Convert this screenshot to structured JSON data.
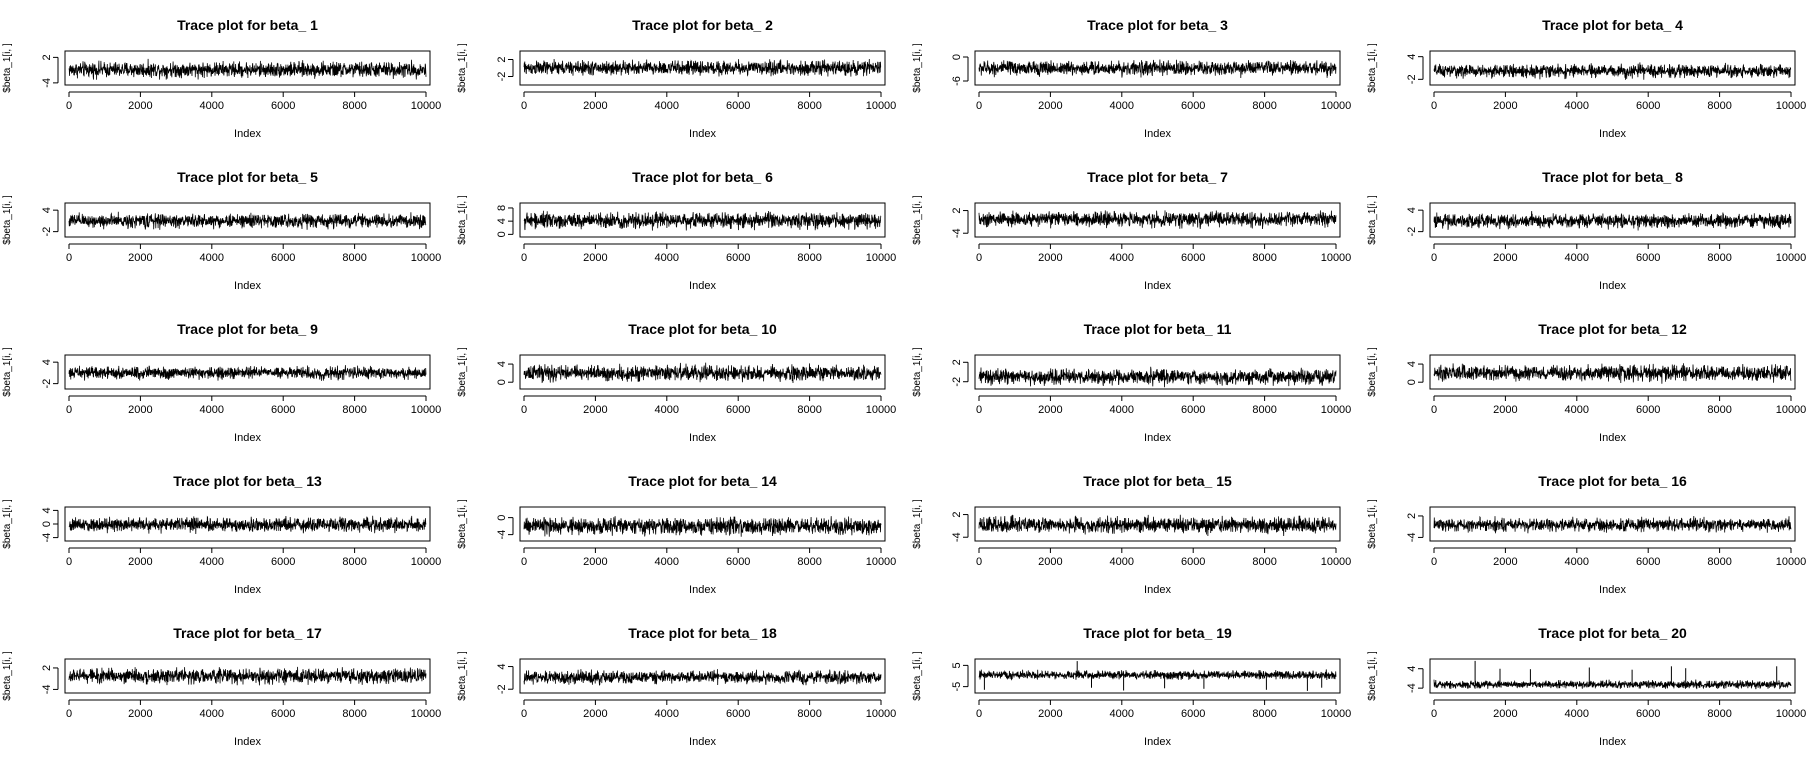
{
  "chart_data": [
    {
      "type": "line",
      "title": "Trace plot for beta_ 1",
      "xlabel": "Index",
      "ylabel": "$beta_1[i, ]",
      "x_ticks": [
        "0",
        "2000",
        "4000",
        "6000",
        "8000",
        "10000"
      ],
      "y_ticks": [
        "-4",
        "2"
      ],
      "xlim": [
        0,
        10000
      ],
      "ylim": [
        -4.5,
        3.5
      ],
      "series": {
        "center": -0.9,
        "spread": 1.4,
        "outliers": []
      }
    },
    {
      "type": "line",
      "title": "Trace plot for beta_ 2",
      "xlabel": "Index",
      "ylabel": "$beta_1[i, ]",
      "x_ticks": [
        "0",
        "2000",
        "4000",
        "6000",
        "8000",
        "10000"
      ],
      "y_ticks": [
        "-2",
        "2"
      ],
      "xlim": [
        0,
        10000
      ],
      "ylim": [
        -4,
        4
      ],
      "series": {
        "center": 0.0,
        "spread": 1.3,
        "outliers": []
      }
    },
    {
      "type": "line",
      "title": "Trace plot for beta_ 3",
      "xlabel": "Index",
      "ylabel": "$beta_1[i, ]",
      "x_ticks": [
        "0",
        "2000",
        "4000",
        "6000",
        "8000",
        "10000"
      ],
      "y_ticks": [
        "-6",
        "0"
      ],
      "xlim": [
        0,
        10000
      ],
      "ylim": [
        -7,
        1.5
      ],
      "series": {
        "center": -2.8,
        "spread": 1.4,
        "outliers": []
      }
    },
    {
      "type": "line",
      "title": "Trace plot for beta_ 4",
      "xlabel": "Index",
      "ylabel": "$beta_1[i, ]",
      "x_ticks": [
        "0",
        "2000",
        "4000",
        "6000",
        "8000",
        "10000"
      ],
      "y_ticks": [
        "-2",
        "4"
      ],
      "xlim": [
        0,
        10000
      ],
      "ylim": [
        -3.5,
        5.5
      ],
      "series": {
        "center": 0.2,
        "spread": 1.3,
        "outliers": []
      }
    },
    {
      "type": "line",
      "title": "Trace plot for beta_ 5",
      "xlabel": "Index",
      "ylabel": "$beta_1[i, ]",
      "x_ticks": [
        "0",
        "2000",
        "4000",
        "6000",
        "8000",
        "10000"
      ],
      "y_ticks": [
        "-2",
        "4"
      ],
      "xlim": [
        -3.5,
        6
      ],
      "ylim": [
        -3.5,
        6
      ],
      "series": {
        "center": 1.0,
        "spread": 1.5,
        "outliers": []
      }
    },
    {
      "type": "line",
      "title": "Trace plot for beta_ 6",
      "xlabel": "Index",
      "ylabel": "$beta_1[i, ]",
      "x_ticks": [
        "0",
        "2000",
        "4000",
        "6000",
        "8000",
        "10000"
      ],
      "y_ticks": [
        "0",
        "4",
        "8"
      ],
      "xlim": [
        0,
        10000
      ],
      "ylim": [
        -0.8,
        9.5
      ],
      "series": {
        "center": 4.2,
        "spread": 1.8,
        "outliers": []
      }
    },
    {
      "type": "line",
      "title": "Trace plot for beta_ 7",
      "xlabel": "Index",
      "ylabel": "$beta_1[i, ]",
      "x_ticks": [
        "0",
        "2000",
        "4000",
        "6000",
        "8000",
        "10000"
      ],
      "y_ticks": [
        "-4",
        "2"
      ],
      "xlim": [
        0,
        10000
      ],
      "ylim": [
        -5,
        4
      ],
      "series": {
        "center": -0.3,
        "spread": 1.5,
        "outliers": []
      }
    },
    {
      "type": "line",
      "title": "Trace plot for beta_ 8",
      "xlabel": "Index",
      "ylabel": "$beta_1[i, ]",
      "x_ticks": [
        "0",
        "2000",
        "4000",
        "6000",
        "8000",
        "10000"
      ],
      "y_ticks": [
        "-2",
        "4"
      ],
      "xlim": [
        0,
        10000
      ],
      "ylim": [
        -3.5,
        6
      ],
      "series": {
        "center": 1.0,
        "spread": 1.5,
        "outliers": []
      }
    },
    {
      "type": "line",
      "title": "Trace plot for beta_ 9",
      "xlabel": "Index",
      "ylabel": "$beta_1[i, ]",
      "x_ticks": [
        "0",
        "2000",
        "4000",
        "6000",
        "8000",
        "10000"
      ],
      "y_ticks": [
        "-2",
        "4"
      ],
      "xlim": [
        0,
        10000
      ],
      "ylim": [
        -3.5,
        6
      ],
      "series": {
        "center": 1.0,
        "spread": 1.3,
        "outliers": []
      }
    },
    {
      "type": "line",
      "title": "Trace plot for beta_ 10",
      "xlabel": "Index",
      "ylabel": "$beta_1[i, ]",
      "x_ticks": [
        "0",
        "2000",
        "4000",
        "6000",
        "8000",
        "10000"
      ],
      "y_ticks": [
        "0",
        "4"
      ],
      "xlim": [
        0,
        10000
      ],
      "ylim": [
        -1.5,
        6
      ],
      "series": {
        "center": 2.0,
        "spread": 1.3,
        "outliers": []
      }
    },
    {
      "type": "line",
      "title": "Trace plot for beta_ 11",
      "xlabel": "Index",
      "ylabel": "$beta_1[i, ]",
      "x_ticks": [
        "0",
        "2000",
        "4000",
        "6000",
        "8000",
        "10000"
      ],
      "y_ticks": [
        "-2",
        "2"
      ],
      "xlim": [
        0,
        10000
      ],
      "ylim": [
        -3.5,
        3.5
      ],
      "series": {
        "center": -1.0,
        "spread": 1.2,
        "outliers": []
      }
    },
    {
      "type": "line",
      "title": "Trace plot for beta_ 12",
      "xlabel": "Index",
      "ylabel": "$beta_1[i, ]",
      "x_ticks": [
        "0",
        "2000",
        "4000",
        "6000",
        "8000",
        "10000"
      ],
      "y_ticks": [
        "0",
        "4"
      ],
      "xlim": [
        0,
        10000
      ],
      "ylim": [
        -1.5,
        6
      ],
      "series": {
        "center": 2.0,
        "spread": 1.3,
        "outliers": []
      }
    },
    {
      "type": "line",
      "title": "Trace plot for beta_ 13",
      "xlabel": "Index",
      "ylabel": "$beta_1[i, ]",
      "x_ticks": [
        "0",
        "2000",
        "4000",
        "6000",
        "8000",
        "10000"
      ],
      "y_ticks": [
        "-4",
        "0",
        "4"
      ],
      "xlim": [
        0,
        10000
      ],
      "ylim": [
        -5,
        5
      ],
      "series": {
        "center": -0.2,
        "spread": 1.6,
        "outliers": []
      }
    },
    {
      "type": "line",
      "title": "Trace plot for beta_ 14",
      "xlabel": "Index",
      "ylabel": "$beta_1[i, ]",
      "x_ticks": [
        "0",
        "2000",
        "4000",
        "6000",
        "8000",
        "10000"
      ],
      "y_ticks": [
        "-4",
        "0"
      ],
      "xlim": [
        0,
        10000
      ],
      "ylim": [
        -5.5,
        2.5
      ],
      "series": {
        "center": -2.0,
        "spread": 1.5,
        "outliers": []
      }
    },
    {
      "type": "line",
      "title": "Trace plot for beta_ 15",
      "xlabel": "Index",
      "ylabel": "$beta_1[i, ]",
      "x_ticks": [
        "0",
        "2000",
        "4000",
        "6000",
        "8000",
        "10000"
      ],
      "y_ticks": [
        "-4",
        "2"
      ],
      "xlim": [
        0,
        10000
      ],
      "ylim": [
        -5,
        4
      ],
      "series": {
        "center": -0.8,
        "spread": 1.6,
        "outliers": []
      }
    },
    {
      "type": "line",
      "title": "Trace plot for beta_ 16",
      "xlabel": "Index",
      "ylabel": "$beta_1[i, ]",
      "x_ticks": [
        "0",
        "2000",
        "4000",
        "6000",
        "8000",
        "10000"
      ],
      "y_ticks": [
        "-4",
        "2"
      ],
      "xlim": [
        0,
        10000
      ],
      "ylim": [
        -5,
        4.5
      ],
      "series": {
        "center": -0.5,
        "spread": 1.4,
        "outliers": []
      }
    },
    {
      "type": "line",
      "title": "Trace plot for beta_ 17",
      "xlabel": "Index",
      "ylabel": "$beta_1[i, ]",
      "x_ticks": [
        "0",
        "2000",
        "4000",
        "6000",
        "8000",
        "10000"
      ],
      "y_ticks": [
        "-4",
        "2"
      ],
      "xlim": [
        0,
        10000
      ],
      "ylim": [
        -5,
        4.5
      ],
      "series": {
        "center": -0.3,
        "spread": 1.6,
        "outliers": []
      }
    },
    {
      "type": "line",
      "title": "Trace plot for beta_ 18",
      "xlabel": "Index",
      "ylabel": "$beta_1[i, ]",
      "x_ticks": [
        "0",
        "2000",
        "4000",
        "6000",
        "8000",
        "10000"
      ],
      "y_ticks": [
        "-2",
        "4"
      ],
      "xlim": [
        0,
        10000
      ],
      "ylim": [
        -3,
        6
      ],
      "series": {
        "center": 1.2,
        "spread": 1.3,
        "outliers": []
      }
    },
    {
      "type": "line",
      "title": "Trace plot for beta_ 19",
      "xlabel": "Index",
      "ylabel": "$beta_1[i, ]",
      "x_ticks": [
        "0",
        "2000",
        "4000",
        "6000",
        "8000",
        "10000"
      ],
      "y_ticks": [
        "-5",
        "5"
      ],
      "xlim": [
        0,
        10000
      ],
      "ylim": [
        -8,
        8
      ],
      "series": {
        "center": 0.5,
        "spread": 1.5,
        "outliers": [
          {
            "x": 150,
            "y": -6.5
          },
          {
            "x": 2750,
            "y": 7.0
          },
          {
            "x": 3150,
            "y": -5.5
          },
          {
            "x": 4050,
            "y": -6.8
          },
          {
            "x": 5200,
            "y": -5.8
          },
          {
            "x": 6300,
            "y": -6.0
          },
          {
            "x": 8050,
            "y": -6.5
          },
          {
            "x": 9200,
            "y": -7.0
          },
          {
            "x": 9600,
            "y": -5.5
          }
        ]
      }
    },
    {
      "type": "line",
      "title": "Trace plot for beta_ 20",
      "xlabel": "Index",
      "ylabel": "$beta_1[i, ]",
      "x_ticks": [
        "0",
        "2000",
        "4000",
        "6000",
        "8000",
        "10000"
      ],
      "y_ticks": [
        "-4",
        "4"
      ],
      "xlim": [
        0,
        10000
      ],
      "ylim": [
        -6,
        8
      ],
      "series": {
        "center": -2.5,
        "spread": 1.2,
        "outliers": [
          {
            "x": 1150,
            "y": 7.2
          },
          {
            "x": 1850,
            "y": 4.0
          },
          {
            "x": 2700,
            "y": 3.8
          },
          {
            "x": 4350,
            "y": 4.5
          },
          {
            "x": 5550,
            "y": 3.6
          },
          {
            "x": 6650,
            "y": 5.0
          },
          {
            "x": 7050,
            "y": 4.2
          },
          {
            "x": 9600,
            "y": 5.0
          }
        ]
      }
    }
  ]
}
